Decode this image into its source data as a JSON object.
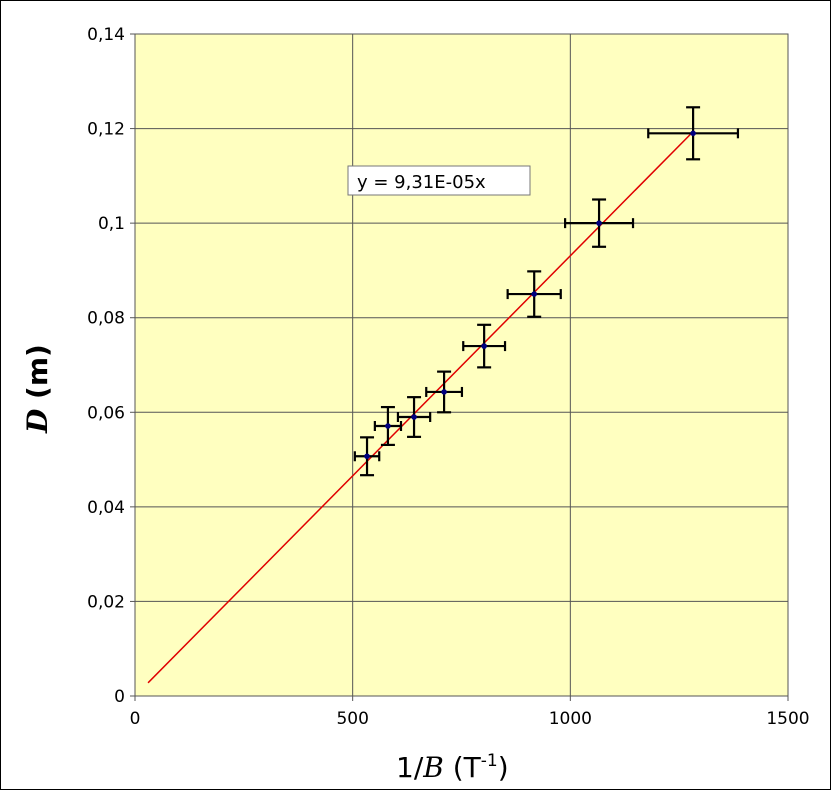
{
  "chart_data": {
    "type": "scatter",
    "xlabel": "1/B (T-1)",
    "xlabel_parts": {
      "prefix": "1/",
      "var": "B",
      "unit_open": " (T",
      "sup": "-1",
      "unit_close": ")"
    },
    "ylabel": "D (m)",
    "ylabel_parts": {
      "var": "D",
      "unit": " (m)"
    },
    "xlim": [
      0,
      1500
    ],
    "ylim": [
      0,
      0.14
    ],
    "xticks": [
      0,
      500,
      1000,
      1500
    ],
    "xtick_labels": [
      "0",
      "500",
      "1000",
      "1500"
    ],
    "yticks": [
      0,
      0.02,
      0.04,
      0.06,
      0.08,
      0.1,
      0.12,
      0.14
    ],
    "ytick_labels": [
      "0",
      "0,02",
      "0,04",
      "0,06",
      "0,08",
      "0,1",
      "0,12",
      "0,14"
    ],
    "grid": true,
    "points": {
      "x": [
        533,
        581,
        641,
        710,
        802,
        917,
        1066,
        1282
      ],
      "y": [
        0.0507,
        0.0571,
        0.059,
        0.0643,
        0.074,
        0.085,
        0.1,
        0.119
      ],
      "xerr": [
        28,
        30,
        37,
        41,
        48,
        61,
        78,
        103
      ],
      "yerr": [
        0.004,
        0.004,
        0.0042,
        0.0043,
        0.0045,
        0.0048,
        0.005,
        0.0055
      ]
    },
    "trendline": {
      "slope": 9.31e-05,
      "intercept": 0,
      "x_range": [
        30,
        1282
      ],
      "equation": "y = 9,31E-05x"
    },
    "colors": {
      "plot_background": "#FFFFC0",
      "trendline": "#E00000",
      "marker": "#000080",
      "errorbar": "#000000",
      "grid": "#555555"
    }
  }
}
